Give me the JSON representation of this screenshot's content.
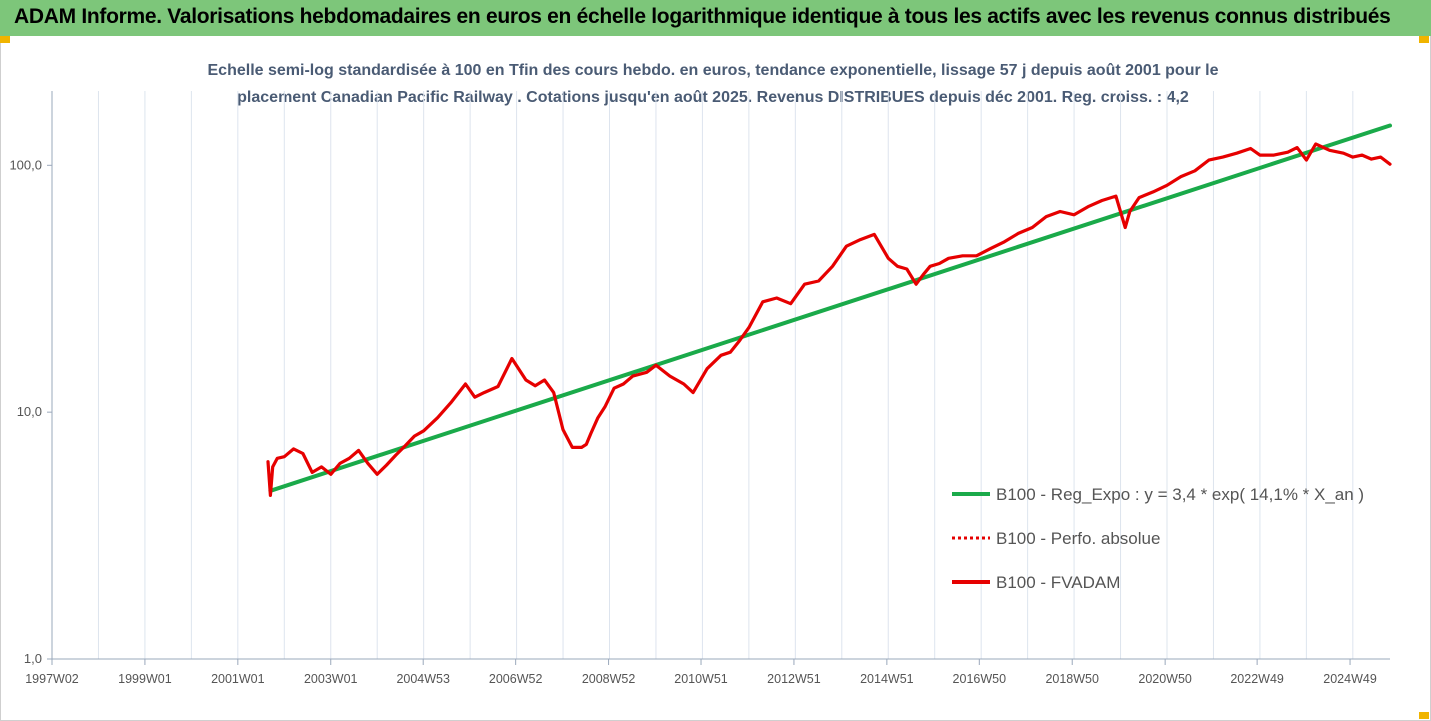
{
  "header": {
    "title": "ADAM Informe. Valorisations hebdomadaires en euros en échelle logarithmique identique à tous les actifs avec les revenus connus distribués"
  },
  "colors": {
    "banner": "#7dc67a",
    "corner_marker": "#f0b400",
    "regression": "#1aaa4a",
    "performance": "#e60000",
    "gridline": "#dde4ee",
    "subtitle": "#4a5b74"
  },
  "chart_data": {
    "type": "line",
    "subtitle_lines": [
      "Echelle semi-log standardisée à 100 en Tfin des cours hebdo. en euros, tendance exponentielle, lissage 57 j depuis août 2001 pour le",
      "placement Canadian Pacific Railway . Cotations jusqu'en août 2025. Revenus DISTRIBUES depuis déc 2001. Reg. croiss. : 4,2"
    ],
    "y_scale": "log",
    "ylim": [
      1,
      200
    ],
    "y_ticks": [
      {
        "value": 1,
        "label": "1,0"
      },
      {
        "value": 10,
        "label": "10,0"
      },
      {
        "value": 100,
        "label": "100,0"
      }
    ],
    "x_unit": "year",
    "xlim": [
      1997.0,
      2025.8
    ],
    "x_ticks": [
      {
        "x": 1997.0,
        "label": "1997W02"
      },
      {
        "x": 1999.0,
        "label": "1999W01"
      },
      {
        "x": 2001.0,
        "label": "2001W01"
      },
      {
        "x": 2003.0,
        "label": "2003W01"
      },
      {
        "x": 2004.99,
        "label": "2004W53"
      },
      {
        "x": 2006.98,
        "label": "2006W52"
      },
      {
        "x": 2008.98,
        "label": "2008W52"
      },
      {
        "x": 2010.97,
        "label": "2010W51"
      },
      {
        "x": 2012.97,
        "label": "2012W51"
      },
      {
        "x": 2014.97,
        "label": "2014W51"
      },
      {
        "x": 2016.96,
        "label": "2016W50"
      },
      {
        "x": 2018.96,
        "label": "2018W50"
      },
      {
        "x": 2020.96,
        "label": "2020W50"
      },
      {
        "x": 2022.94,
        "label": "2022W49"
      },
      {
        "x": 2024.94,
        "label": "2024W49"
      }
    ],
    "grid": "vertical",
    "legend_position": "lower-right",
    "series": [
      {
        "name": "B100 - Reg_Expo : y = 3,4 * exp( 14,1% *  X_an )",
        "style": "solid",
        "color": "#1aaa4a",
        "x": [
          2001.7,
          2025.8
        ],
        "y": [
          4.8,
          145
        ]
      },
      {
        "name": "B100 - Perfo. absolue",
        "style": "dotted",
        "color": "#e60000",
        "x": [],
        "y": []
      },
      {
        "name": "B100 - FVADAM",
        "style": "solid",
        "color": "#e60000",
        "x": [
          2001.65,
          2001.7,
          2001.75,
          2001.85,
          2002.0,
          2002.2,
          2002.4,
          2002.6,
          2002.8,
          2003.0,
          2003.2,
          2003.4,
          2003.6,
          2003.8,
          2004.0,
          2004.2,
          2004.4,
          2004.6,
          2004.8,
          2005.0,
          2005.3,
          2005.6,
          2005.9,
          2006.1,
          2006.3,
          2006.6,
          2006.9,
          2007.2,
          2007.4,
          2007.6,
          2007.8,
          2008.0,
          2008.2,
          2008.4,
          2008.5,
          2008.6,
          2008.75,
          2008.9,
          2009.1,
          2009.3,
          2009.5,
          2009.8,
          2010.0,
          2010.3,
          2010.6,
          2010.8,
          2011.1,
          2011.4,
          2011.6,
          2011.8,
          2012.0,
          2012.3,
          2012.6,
          2012.9,
          2013.2,
          2013.5,
          2013.8,
          2014.1,
          2014.4,
          2014.7,
          2015.0,
          2015.2,
          2015.4,
          2015.6,
          2015.75,
          2015.9,
          2016.1,
          2016.3,
          2016.6,
          2016.9,
          2017.2,
          2017.5,
          2017.8,
          2018.1,
          2018.4,
          2018.7,
          2019.0,
          2019.3,
          2019.6,
          2019.9,
          2020.1,
          2020.2,
          2020.4,
          2020.7,
          2021.0,
          2021.3,
          2021.6,
          2021.9,
          2022.2,
          2022.5,
          2022.8,
          2023.0,
          2023.3,
          2023.6,
          2023.8,
          2024.0,
          2024.2,
          2024.5,
          2024.8,
          2025.0,
          2025.2,
          2025.4,
          2025.6,
          2025.8
        ],
        "y": [
          6.3,
          4.6,
          6.0,
          6.5,
          6.6,
          7.1,
          6.8,
          5.7,
          6.0,
          5.6,
          6.2,
          6.5,
          7.0,
          6.2,
          5.6,
          6.1,
          6.7,
          7.3,
          8.0,
          8.4,
          9.5,
          11.0,
          13.0,
          11.5,
          12.0,
          12.7,
          16.5,
          13.5,
          12.8,
          13.5,
          12.0,
          8.5,
          7.2,
          7.2,
          7.4,
          8.2,
          9.5,
          10.5,
          12.5,
          13.0,
          14.0,
          14.5,
          15.5,
          14.0,
          13.0,
          12.0,
          15.0,
          17.0,
          17.5,
          19.5,
          22.0,
          28.0,
          29.0,
          27.5,
          33.0,
          34.0,
          39.0,
          47.0,
          50.0,
          52.5,
          42.0,
          39.0,
          38.0,
          33.0,
          36.0,
          39.0,
          40.0,
          42.0,
          43.0,
          43.0,
          46.0,
          49.0,
          53.0,
          56.0,
          62.0,
          65.0,
          63.0,
          68.0,
          72.0,
          75.0,
          56.0,
          65.0,
          74.0,
          78.0,
          83.0,
          90.0,
          95.0,
          105.0,
          108.0,
          112.0,
          117.0,
          110.0,
          110.0,
          113.0,
          118.0,
          105.0,
          122.0,
          115.0,
          112.0,
          108.0,
          110.0,
          106.0,
          108.0,
          101.0
        ]
      }
    ]
  }
}
